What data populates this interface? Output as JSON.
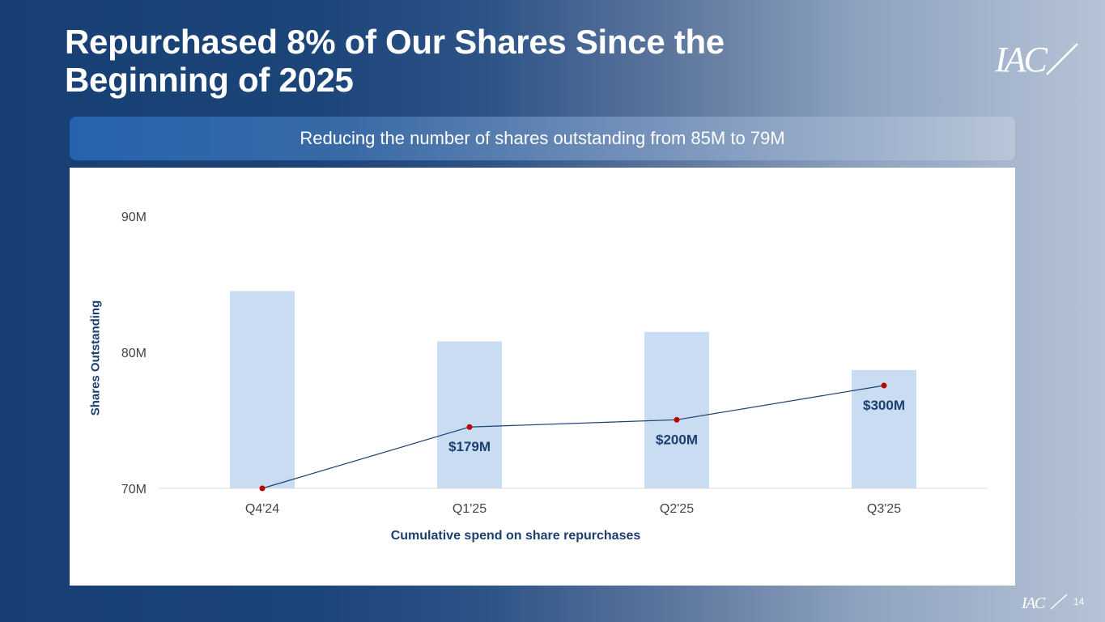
{
  "slide": {
    "title": "Repurchased 8% of Our Shares Since the Beginning of 2025",
    "subtitle": "Reducing the number of shares outstanding from 85M to 79M",
    "logo_text": "IAC",
    "page_number": "14"
  },
  "colors": {
    "bar": "#c9dcf2",
    "line": "#1c3f70",
    "marker": "#c00000",
    "label": "#1c3f70",
    "tick": "#444444"
  },
  "chart_data": {
    "type": "bar",
    "categories": [
      "Q4'24",
      "Q1'25",
      "Q2'25",
      "Q3'25"
    ],
    "series": [
      {
        "type": "bar",
        "values": [
          84.5,
          80.8,
          81.5,
          78.7
        ]
      },
      {
        "type": "line",
        "values": [
          0,
          179,
          200,
          300
        ],
        "labels": [
          "",
          "$179M",
          "$200M",
          "$300M"
        ]
      }
    ],
    "ylabel": "Shares Outstanding",
    "xlabel": "Cumulative spend on share repurchases",
    "ylim": [
      70,
      90
    ],
    "yticks": [
      70,
      80,
      90
    ],
    "ytick_labels": [
      "70M",
      "80M",
      "90M"
    ],
    "grid": false,
    "legend": "none"
  }
}
